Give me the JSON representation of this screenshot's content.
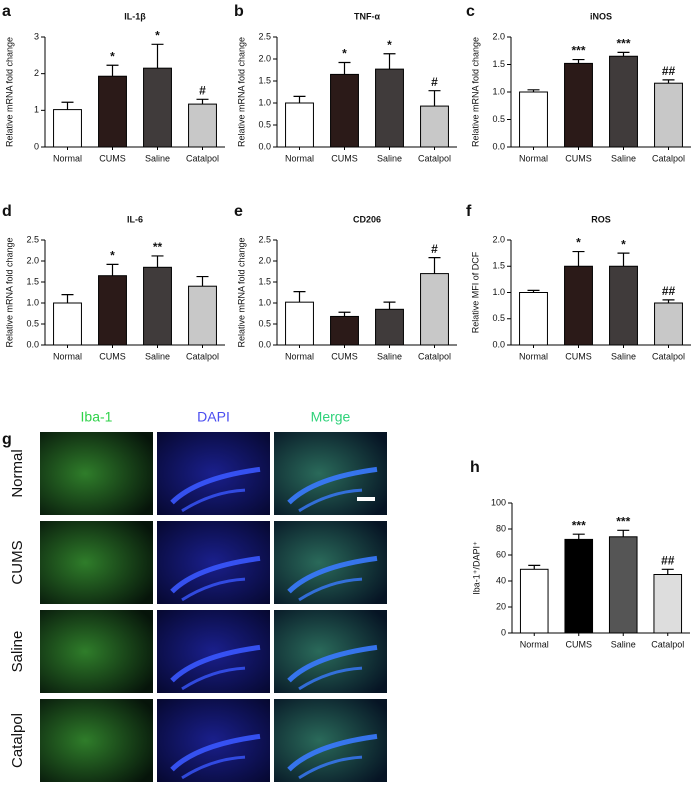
{
  "chart_data": [
    {
      "panel": "a",
      "type": "bar",
      "title": "IL-1β",
      "ylabel": "Relative mRNA fold change",
      "categories": [
        "Normal",
        "CUMS",
        "Saline",
        "Catalpol"
      ],
      "values": [
        1.02,
        1.93,
        2.15,
        1.17
      ],
      "errors": [
        0.2,
        0.3,
        0.65,
        0.13
      ],
      "annotations": [
        null,
        "*",
        "*",
        "#"
      ],
      "colors": [
        "#ffffff",
        "#2b1a18",
        "#403b3b",
        "#c8c8c8"
      ],
      "ylim": [
        0,
        3
      ],
      "yticks": [
        0,
        1,
        2,
        3
      ]
    },
    {
      "panel": "b",
      "type": "bar",
      "title": "TNF-α",
      "ylabel": "Relative mRNA fold change",
      "categories": [
        "Normal",
        "CUMS",
        "Saline",
        "Catalpol"
      ],
      "values": [
        1.0,
        1.65,
        1.77,
        0.93
      ],
      "errors": [
        0.15,
        0.27,
        0.35,
        0.35
      ],
      "annotations": [
        null,
        "*",
        "*",
        "#"
      ],
      "colors": [
        "#ffffff",
        "#2b1a18",
        "#403b3b",
        "#c8c8c8"
      ],
      "ylim": [
        0,
        2.5
      ],
      "yticks": [
        {
          "value": 0,
          "label": "0.0"
        },
        {
          "value": 0.5,
          "label": "0.5"
        },
        {
          "value": 1,
          "label": "1.0"
        },
        {
          "value": 1.5,
          "label": "1.5"
        },
        {
          "value": 2,
          "label": "2.0"
        },
        {
          "value": 2.5,
          "label": "2.5"
        }
      ]
    },
    {
      "panel": "c",
      "type": "bar",
      "title": "iNOS",
      "ylabel": "Relative mRNA fold change",
      "categories": [
        "Normal",
        "CUMS",
        "Saline",
        "Catalpol"
      ],
      "values": [
        1.0,
        1.52,
        1.65,
        1.16
      ],
      "errors": [
        0.04,
        0.07,
        0.07,
        0.06
      ],
      "annotations": [
        null,
        "***",
        "***",
        "##"
      ],
      "colors": [
        "#ffffff",
        "#2b1a18",
        "#403b3b",
        "#c8c8c8"
      ],
      "ylim": [
        0,
        2
      ],
      "yticks": [
        {
          "value": 0,
          "label": "0.0"
        },
        {
          "value": 0.5,
          "label": "0.5"
        },
        {
          "value": 1,
          "label": "1.0"
        },
        {
          "value": 1.5,
          "label": "1.5"
        },
        {
          "value": 2,
          "label": "2.0"
        }
      ]
    },
    {
      "panel": "d",
      "type": "bar",
      "title": "IL-6",
      "ylabel": "Relative mRNA fold change",
      "categories": [
        "Normal",
        "CUMS",
        "Saline",
        "Catalpol"
      ],
      "values": [
        1.0,
        1.65,
        1.85,
        1.4
      ],
      "errors": [
        0.2,
        0.27,
        0.27,
        0.23
      ],
      "annotations": [
        null,
        "*",
        "**",
        null
      ],
      "colors": [
        "#ffffff",
        "#2b1a18",
        "#403b3b",
        "#c8c8c8"
      ],
      "ylim": [
        0,
        2.5
      ],
      "yticks": [
        {
          "value": 0,
          "label": "0.0"
        },
        {
          "value": 0.5,
          "label": "0.5"
        },
        {
          "value": 1,
          "label": "1.0"
        },
        {
          "value": 1.5,
          "label": "1.5"
        },
        {
          "value": 2,
          "label": "2.0"
        },
        {
          "value": 2.5,
          "label": "2.5"
        }
      ]
    },
    {
      "panel": "e",
      "type": "bar",
      "title": "CD206",
      "ylabel": "Relative mRNA fold change",
      "categories": [
        "Normal",
        "CUMS",
        "Saline",
        "Catalpol"
      ],
      "values": [
        1.02,
        0.68,
        0.85,
        1.7
      ],
      "errors": [
        0.25,
        0.1,
        0.17,
        0.38
      ],
      "annotations": [
        null,
        null,
        null,
        "#"
      ],
      "colors": [
        "#ffffff",
        "#2b1a18",
        "#403b3b",
        "#c8c8c8"
      ],
      "ylim": [
        0,
        2.5
      ],
      "yticks": [
        {
          "value": 0,
          "label": "0.0"
        },
        {
          "value": 0.5,
          "label": "0.5"
        },
        {
          "value": 1,
          "label": "1.0"
        },
        {
          "value": 1.5,
          "label": "1.5"
        },
        {
          "value": 2,
          "label": "2.0"
        },
        {
          "value": 2.5,
          "label": "2.5"
        }
      ]
    },
    {
      "panel": "f",
      "type": "bar",
      "title": "ROS",
      "ylabel": "Relative MFI of DCF",
      "categories": [
        "Normal",
        "CUMS",
        "Saline",
        "Catalpol"
      ],
      "values": [
        1.0,
        1.5,
        1.5,
        0.8
      ],
      "errors": [
        0.04,
        0.28,
        0.25,
        0.06
      ],
      "annotations": [
        null,
        "*",
        "*",
        "##"
      ],
      "colors": [
        "#ffffff",
        "#2b1a18",
        "#403b3b",
        "#c8c8c8"
      ],
      "ylim": [
        0,
        2
      ],
      "yticks": [
        {
          "value": 0,
          "label": "0.0"
        },
        {
          "value": 0.5,
          "label": "0.5"
        },
        {
          "value": 1,
          "label": "1.0"
        },
        {
          "value": 1.5,
          "label": "1.5"
        },
        {
          "value": 2,
          "label": "2.0"
        }
      ]
    },
    {
      "panel": "h",
      "type": "bar",
      "ylabel": "Iba-1⁺/DAPI⁺",
      "categories": [
        "Normal",
        "CUMS",
        "Saline",
        "Catalpol"
      ],
      "values": [
        49,
        72,
        74,
        45
      ],
      "errors": [
        3,
        4,
        5,
        4
      ],
      "annotations": [
        null,
        "***",
        "***",
        "##"
      ],
      "colors": [
        "#ffffff",
        "#000000",
        "#555555",
        "#dddddd"
      ],
      "ylim": [
        0,
        100
      ],
      "yticks": [
        0,
        20,
        40,
        60,
        80,
        100
      ]
    }
  ],
  "micrographs": {
    "panel": "g",
    "columns": [
      "Iba-1",
      "DAPI",
      "Merge"
    ],
    "rows": [
      "Normal",
      "CUMS",
      "Saline",
      "Catalpol"
    ]
  }
}
